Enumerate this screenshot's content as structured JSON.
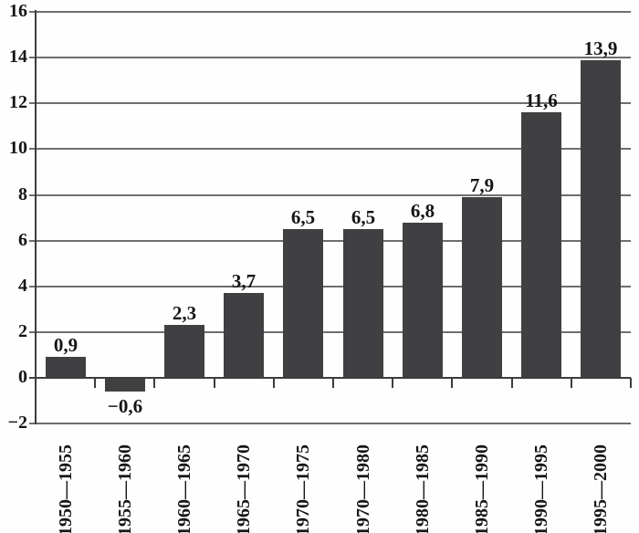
{
  "chart_data": {
    "type": "bar",
    "title": "",
    "categories": [
      "1950—1955",
      "1955—1960",
      "1960—1965",
      "1965—1970",
      "1970—1975",
      "1970—1980",
      "1980—1985",
      "1985—1990",
      "1990—1995",
      "1995—2000"
    ],
    "values": [
      0.9,
      -0.6,
      2.3,
      3.7,
      6.5,
      6.5,
      6.8,
      7.9,
      11.6,
      13.9
    ],
    "value_labels": [
      "0,9",
      "−0,6",
      "2,3",
      "3,7",
      "6,5",
      "6,5",
      "6,8",
      "7,9",
      "11,6",
      "13,9"
    ],
    "y_ticks": [
      -2,
      0,
      2,
      4,
      6,
      8,
      10,
      12,
      14,
      16
    ],
    "y_tick_labels": [
      "−2",
      "0",
      "2",
      "4",
      "6",
      "8",
      "10",
      "12",
      "14",
      "16"
    ],
    "ylim": [
      -2,
      16
    ],
    "xlabel": "",
    "ylabel": "",
    "grid": true,
    "legend": false,
    "colors": {
      "bar": "#404042",
      "grid": "#6e6e6e",
      "axis": "#3c3c3c",
      "text": "#151515",
      "background": "#fefefe"
    }
  }
}
